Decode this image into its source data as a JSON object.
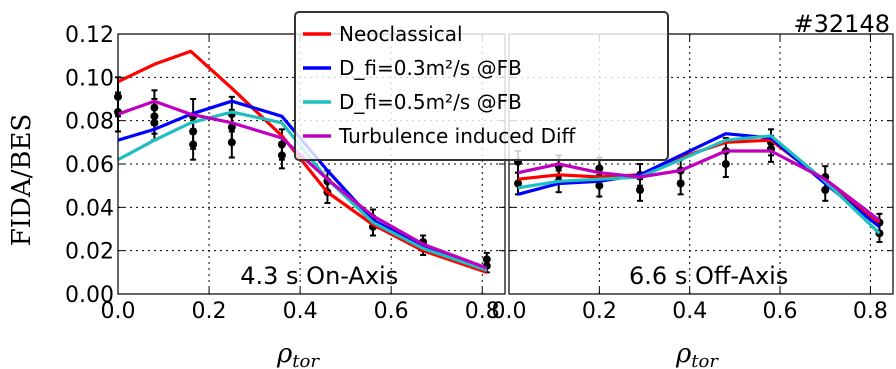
{
  "figure": {
    "shot_label": "#32148",
    "ylabel": "FIDA/BES",
    "xlabel_base": "ρ",
    "xlabel_sub": "tor"
  },
  "legend": [
    {
      "key": "neo",
      "label": "Neoclassical",
      "color": "#ff0000"
    },
    {
      "key": "d03",
      "label": "D_fi=0.3m²/s @FB",
      "color": "#0000ff"
    },
    {
      "key": "d05",
      "label": "D_fi=0.5m²/s @FB",
      "color": "#1fbfbf"
    },
    {
      "key": "turb",
      "label": "Turbulence induced Diff",
      "color": "#bf00bf"
    }
  ],
  "chart_data": [
    {
      "type": "line",
      "annotation": "4.3 s On-Axis",
      "xlim": [
        0.0,
        0.85
      ],
      "ylim": [
        0.0,
        0.12
      ],
      "xticks": [
        "0.0",
        "0.2",
        "0.4",
        "0.6",
        "0.8"
      ],
      "yticks": [
        "0.00",
        "0.02",
        "0.04",
        "0.06",
        "0.08",
        "0.10",
        "0.12"
      ],
      "grid": true,
      "series": [
        {
          "name": "Neoclassical",
          "key": "neo",
          "x": [
            0.0,
            0.08,
            0.16,
            0.25,
            0.36,
            0.46,
            0.56,
            0.67,
            0.81
          ],
          "y": [
            0.098,
            0.106,
            0.112,
            0.095,
            0.073,
            0.047,
            0.032,
            0.02,
            0.01
          ]
        },
        {
          "name": "D_fi=0.3m²/s @FB",
          "key": "d03",
          "x": [
            0.0,
            0.08,
            0.16,
            0.25,
            0.36,
            0.46,
            0.56,
            0.67,
            0.81
          ],
          "y": [
            0.071,
            0.076,
            0.083,
            0.089,
            0.082,
            0.057,
            0.034,
            0.022,
            0.011
          ]
        },
        {
          "name": "D_fi=0.5m²/s @FB",
          "key": "d05",
          "x": [
            0.0,
            0.08,
            0.16,
            0.25,
            0.36,
            0.46,
            0.56,
            0.67,
            0.81
          ],
          "y": [
            0.062,
            0.071,
            0.079,
            0.084,
            0.079,
            0.053,
            0.033,
            0.021,
            0.011
          ]
        },
        {
          "name": "Turbulence induced Diff",
          "key": "turb",
          "x": [
            0.0,
            0.08,
            0.16,
            0.25,
            0.36,
            0.46,
            0.56,
            0.67,
            0.81
          ],
          "y": [
            0.083,
            0.089,
            0.083,
            0.079,
            0.072,
            0.053,
            0.036,
            0.023,
            0.012
          ]
        }
      ],
      "measurements": {
        "x": [
          0.0,
          0.0,
          0.08,
          0.08,
          0.08,
          0.165,
          0.165,
          0.165,
          0.25,
          0.25,
          0.25,
          0.36,
          0.36,
          0.46,
          0.46,
          0.56,
          0.56,
          0.67,
          0.67,
          0.81,
          0.81
        ],
        "y": [
          0.091,
          0.084,
          0.086,
          0.082,
          0.079,
          0.082,
          0.075,
          0.069,
          0.083,
          0.077,
          0.07,
          0.069,
          0.064,
          0.052,
          0.047,
          0.035,
          0.031,
          0.024,
          0.021,
          0.016,
          0.013
        ],
        "err": [
          0.009,
          0.009,
          0.008,
          0.008,
          0.008,
          0.008,
          0.008,
          0.007,
          0.008,
          0.008,
          0.007,
          0.007,
          0.006,
          0.005,
          0.005,
          0.004,
          0.004,
          0.003,
          0.003,
          0.003,
          0.003
        ]
      }
    },
    {
      "type": "line",
      "annotation": "6.6 s Off-Axis",
      "xlim": [
        0.0,
        0.85
      ],
      "ylim": [
        0.0,
        0.12
      ],
      "xticks": [
        "0.0",
        "0.2",
        "0.4",
        "0.6",
        "0.8"
      ],
      "yticks": [],
      "grid": true,
      "series": [
        {
          "name": "Neoclassical",
          "key": "neo",
          "x": [
            0.02,
            0.11,
            0.2,
            0.29,
            0.38,
            0.48,
            0.58,
            0.7,
            0.82
          ],
          "y": [
            0.053,
            0.055,
            0.054,
            0.055,
            0.063,
            0.07,
            0.071,
            0.052,
            0.033
          ]
        },
        {
          "name": "D_fi=0.3m²/s @FB",
          "key": "d03",
          "x": [
            0.02,
            0.11,
            0.2,
            0.29,
            0.38,
            0.48,
            0.58,
            0.7,
            0.82
          ],
          "y": [
            0.046,
            0.051,
            0.052,
            0.055,
            0.064,
            0.074,
            0.072,
            0.051,
            0.031
          ]
        },
        {
          "name": "D_fi=0.5m²/s @FB",
          "key": "d05",
          "x": [
            0.02,
            0.11,
            0.2,
            0.29,
            0.38,
            0.48,
            0.58,
            0.7,
            0.82
          ],
          "y": [
            0.049,
            0.052,
            0.053,
            0.054,
            0.062,
            0.071,
            0.073,
            0.052,
            0.028
          ]
        },
        {
          "name": "Turbulence induced Diff",
          "key": "turb",
          "x": [
            0.02,
            0.11,
            0.2,
            0.29,
            0.38,
            0.48,
            0.58,
            0.7,
            0.82
          ],
          "y": [
            0.056,
            0.06,
            0.056,
            0.054,
            0.057,
            0.066,
            0.066,
            0.053,
            0.034
          ]
        }
      ],
      "measurements": {
        "x": [
          0.02,
          0.02,
          0.11,
          0.11,
          0.2,
          0.2,
          0.29,
          0.29,
          0.38,
          0.38,
          0.48,
          0.48,
          0.58,
          0.58,
          0.7,
          0.7,
          0.82,
          0.82
        ],
        "y": [
          0.061,
          0.051,
          0.059,
          0.052,
          0.058,
          0.05,
          0.055,
          0.048,
          0.057,
          0.051,
          0.066,
          0.06,
          0.07,
          0.067,
          0.054,
          0.048,
          0.033,
          0.028
        ],
        "err": [
          0.005,
          0.005,
          0.005,
          0.005,
          0.005,
          0.005,
          0.005,
          0.005,
          0.005,
          0.005,
          0.006,
          0.006,
          0.006,
          0.006,
          0.005,
          0.005,
          0.004,
          0.004
        ]
      }
    }
  ]
}
